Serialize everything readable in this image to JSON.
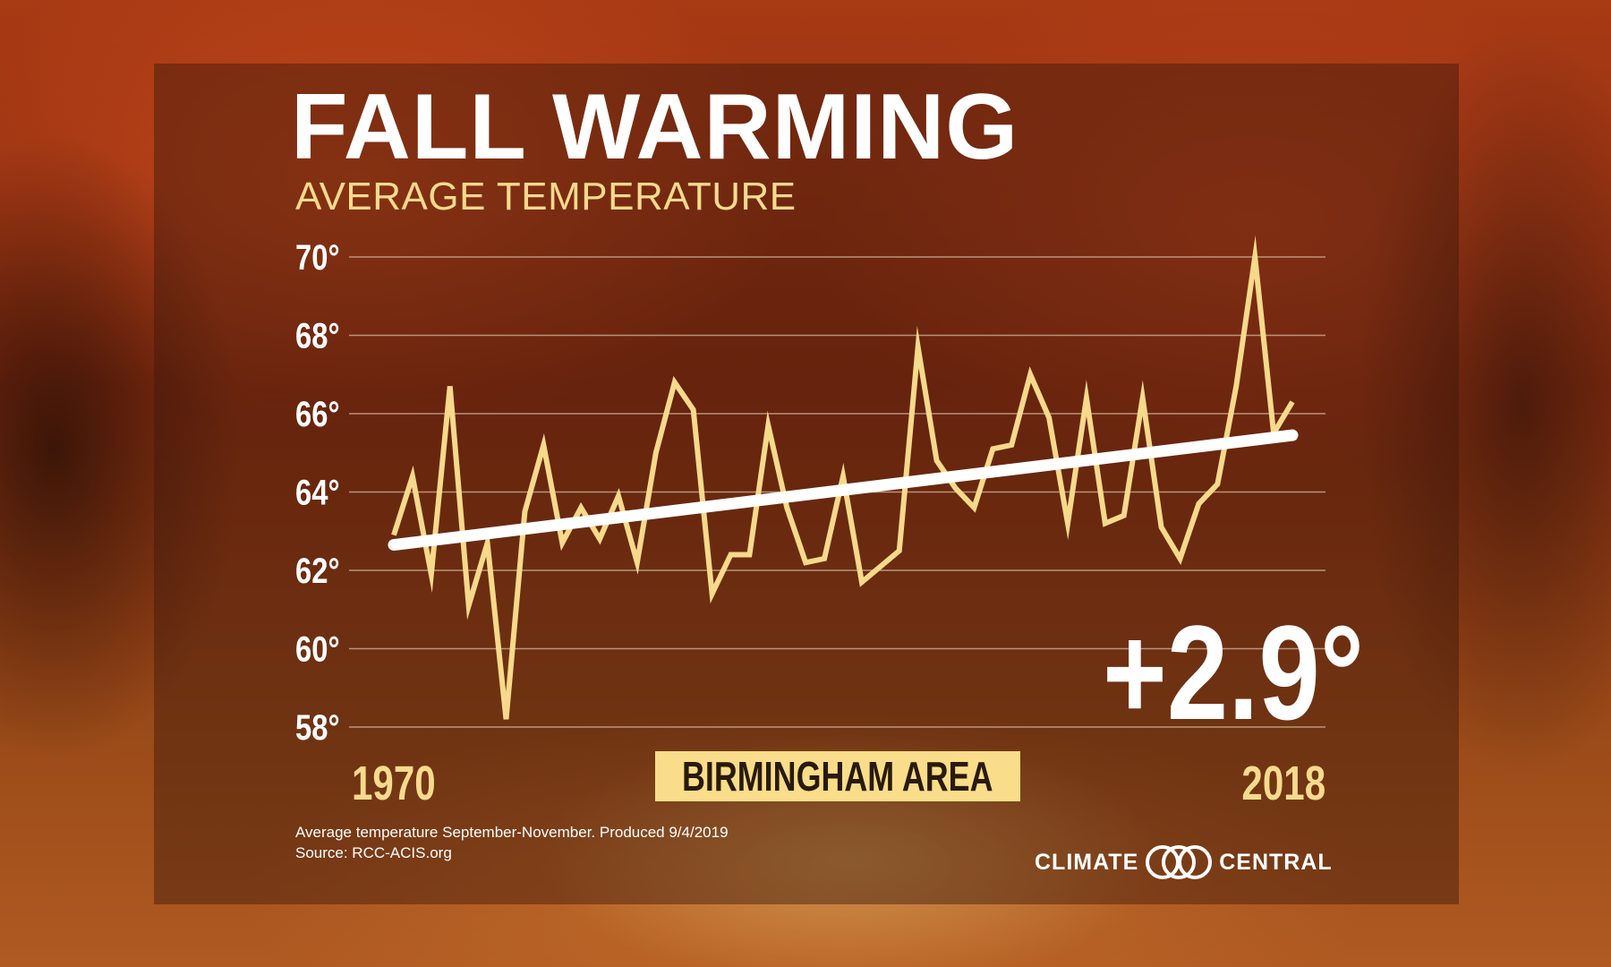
{
  "title": "FALL WARMING",
  "subtitle": "AVERAGE TEMPERATURE",
  "change_label": "+2.9°",
  "location": "BIRMINGHAM AREA",
  "footnote": "Average temperature September-November. Produced 9/4/2019",
  "source": "Source: RCC-ACIS.org",
  "logo": {
    "left": "CLIMATE",
    "right": "CENTRAL"
  },
  "colors": {
    "line": "#f6d98a",
    "trend": "#ffffff",
    "accent": "#f9dd8a",
    "grid": "#d8c0a8"
  },
  "chart_data": {
    "type": "line",
    "title": "FALL WARMING",
    "subtitle": "AVERAGE TEMPERATURE",
    "x_start_label": "1970",
    "x_end_label": "2018",
    "xlim": [
      1970,
      2018
    ],
    "ylim": [
      58,
      70
    ],
    "yticks": [
      70,
      68,
      66,
      64,
      62,
      60,
      58
    ],
    "ytick_labels": [
      "70°",
      "68°",
      "66°",
      "64°",
      "62°",
      "60°",
      "58°"
    ],
    "grid": true,
    "x": [
      1970,
      1971,
      1972,
      1973,
      1974,
      1975,
      1976,
      1977,
      1978,
      1979,
      1980,
      1981,
      1982,
      1983,
      1984,
      1985,
      1986,
      1987,
      1988,
      1989,
      1990,
      1991,
      1992,
      1993,
      1994,
      1995,
      1996,
      1997,
      1998,
      1999,
      2000,
      2001,
      2002,
      2003,
      2004,
      2005,
      2006,
      2007,
      2008,
      2009,
      2010,
      2011,
      2012,
      2013,
      2014,
      2015,
      2016,
      2017,
      2018
    ],
    "series": [
      {
        "values": [
          62.9,
          64.4,
          61.9,
          66.7,
          61.1,
          62.7,
          58.2,
          63.5,
          65.2,
          62.7,
          63.6,
          62.8,
          63.9,
          62.2,
          65.0,
          66.8,
          66.1,
          61.4,
          62.4,
          62.4,
          65.7,
          63.6,
          62.2,
          62.3,
          64.4,
          61.7,
          62.1,
          62.5,
          67.7,
          64.8,
          64.1,
          63.6,
          65.1,
          65.2,
          67.0,
          65.9,
          63.2,
          66.4,
          63.2,
          63.4,
          66.4,
          63.1,
          62.3,
          63.7,
          64.2,
          66.7,
          70.0,
          65.5,
          66.3
        ]
      }
    ],
    "trend": {
      "start": 62.65,
      "end": 65.45,
      "change": "+2.9°"
    }
  }
}
